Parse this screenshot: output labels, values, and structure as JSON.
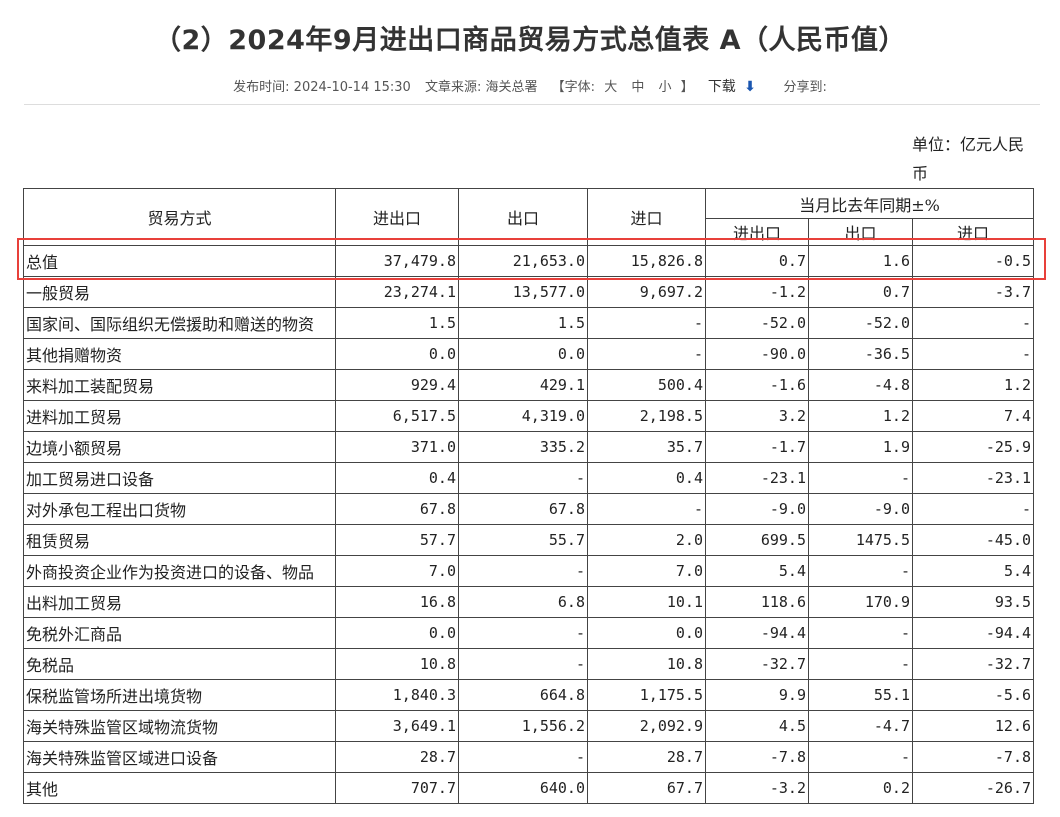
{
  "page": {
    "title": "（2）2024年9月进出口商品贸易方式总值表 A（人民币值）",
    "meta": {
      "publish_label": "发布时间:",
      "publish_time": "2024-10-14 15:30",
      "source_label": "文章来源:",
      "source": "海关总署",
      "font_open": "【字体:",
      "font_large": "大",
      "font_medium": "中",
      "font_small": "小",
      "font_close": "】",
      "download_label": "下载",
      "download_icon": "download-arrow-icon",
      "share_label": "分享到:"
    },
    "unit": "单位：亿元人民币"
  },
  "table": {
    "headers": {
      "trade_mode": "贸易方式",
      "total": "进出口",
      "export": "出口",
      "import": "进口",
      "yoy_group": "当月比去年同期±%",
      "yoy_total": "进出口",
      "yoy_export": "出口",
      "yoy_import": "进口"
    },
    "rows": [
      {
        "name": "总值",
        "total": "37,479.8",
        "export": "21,653.0",
        "import": "15,826.8",
        "yoy_total": "0.7",
        "yoy_export": "1.6",
        "yoy_import": "-0.5"
      },
      {
        "name": "一般贸易",
        "total": "23,274.1",
        "export": "13,577.0",
        "import": "9,697.2",
        "yoy_total": "-1.2",
        "yoy_export": "0.7",
        "yoy_import": "-3.7"
      },
      {
        "name": "国家间、国际组织无偿援助和赠送的物资",
        "total": "1.5",
        "export": "1.5",
        "import": "-",
        "yoy_total": "-52.0",
        "yoy_export": "-52.0",
        "yoy_import": "-"
      },
      {
        "name": "其他捐赠物资",
        "total": "0.0",
        "export": "0.0",
        "import": "-",
        "yoy_total": "-90.0",
        "yoy_export": "-36.5",
        "yoy_import": "-"
      },
      {
        "name": "来料加工装配贸易",
        "total": "929.4",
        "export": "429.1",
        "import": "500.4",
        "yoy_total": "-1.6",
        "yoy_export": "-4.8",
        "yoy_import": "1.2"
      },
      {
        "name": "进料加工贸易",
        "total": "6,517.5",
        "export": "4,319.0",
        "import": "2,198.5",
        "yoy_total": "3.2",
        "yoy_export": "1.2",
        "yoy_import": "7.4"
      },
      {
        "name": "边境小额贸易",
        "total": "371.0",
        "export": "335.2",
        "import": "35.7",
        "yoy_total": "-1.7",
        "yoy_export": "1.9",
        "yoy_import": "-25.9"
      },
      {
        "name": "加工贸易进口设备",
        "total": "0.4",
        "export": "-",
        "import": "0.4",
        "yoy_total": "-23.1",
        "yoy_export": "-",
        "yoy_import": "-23.1"
      },
      {
        "name": "对外承包工程出口货物",
        "total": "67.8",
        "export": "67.8",
        "import": "-",
        "yoy_total": "-9.0",
        "yoy_export": "-9.0",
        "yoy_import": "-"
      },
      {
        "name": "租赁贸易",
        "total": "57.7",
        "export": "55.7",
        "import": "2.0",
        "yoy_total": "699.5",
        "yoy_export": "1475.5",
        "yoy_import": "-45.0"
      },
      {
        "name": "外商投资企业作为投资进口的设备、物品",
        "total": "7.0",
        "export": "-",
        "import": "7.0",
        "yoy_total": "5.4",
        "yoy_export": "-",
        "yoy_import": "5.4"
      },
      {
        "name": "出料加工贸易",
        "total": "16.8",
        "export": "6.8",
        "import": "10.1",
        "yoy_total": "118.6",
        "yoy_export": "170.9",
        "yoy_import": "93.5"
      },
      {
        "name": "免税外汇商品",
        "total": "0.0",
        "export": "-",
        "import": "0.0",
        "yoy_total": "-94.4",
        "yoy_export": "-",
        "yoy_import": "-94.4"
      },
      {
        "name": "免税品",
        "total": "10.8",
        "export": "-",
        "import": "10.8",
        "yoy_total": "-32.7",
        "yoy_export": "-",
        "yoy_import": "-32.7"
      },
      {
        "name": "保税监管场所进出境货物",
        "total": "1,840.3",
        "export": "664.8",
        "import": "1,175.5",
        "yoy_total": "9.9",
        "yoy_export": "55.1",
        "yoy_import": "-5.6"
      },
      {
        "name": "海关特殊监管区域物流货物",
        "total": "3,649.1",
        "export": "1,556.2",
        "import": "2,092.9",
        "yoy_total": "4.5",
        "yoy_export": "-4.7",
        "yoy_import": "12.6"
      },
      {
        "name": "海关特殊监管区域进口设备",
        "total": "28.7",
        "export": "-",
        "import": "28.7",
        "yoy_total": "-7.8",
        "yoy_export": "-",
        "yoy_import": "-7.8"
      },
      {
        "name": "其他",
        "total": "707.7",
        "export": "640.0",
        "import": "67.7",
        "yoy_total": "-3.2",
        "yoy_export": "0.2",
        "yoy_import": "-26.7"
      }
    ],
    "highlight_color": "#e8403a"
  }
}
